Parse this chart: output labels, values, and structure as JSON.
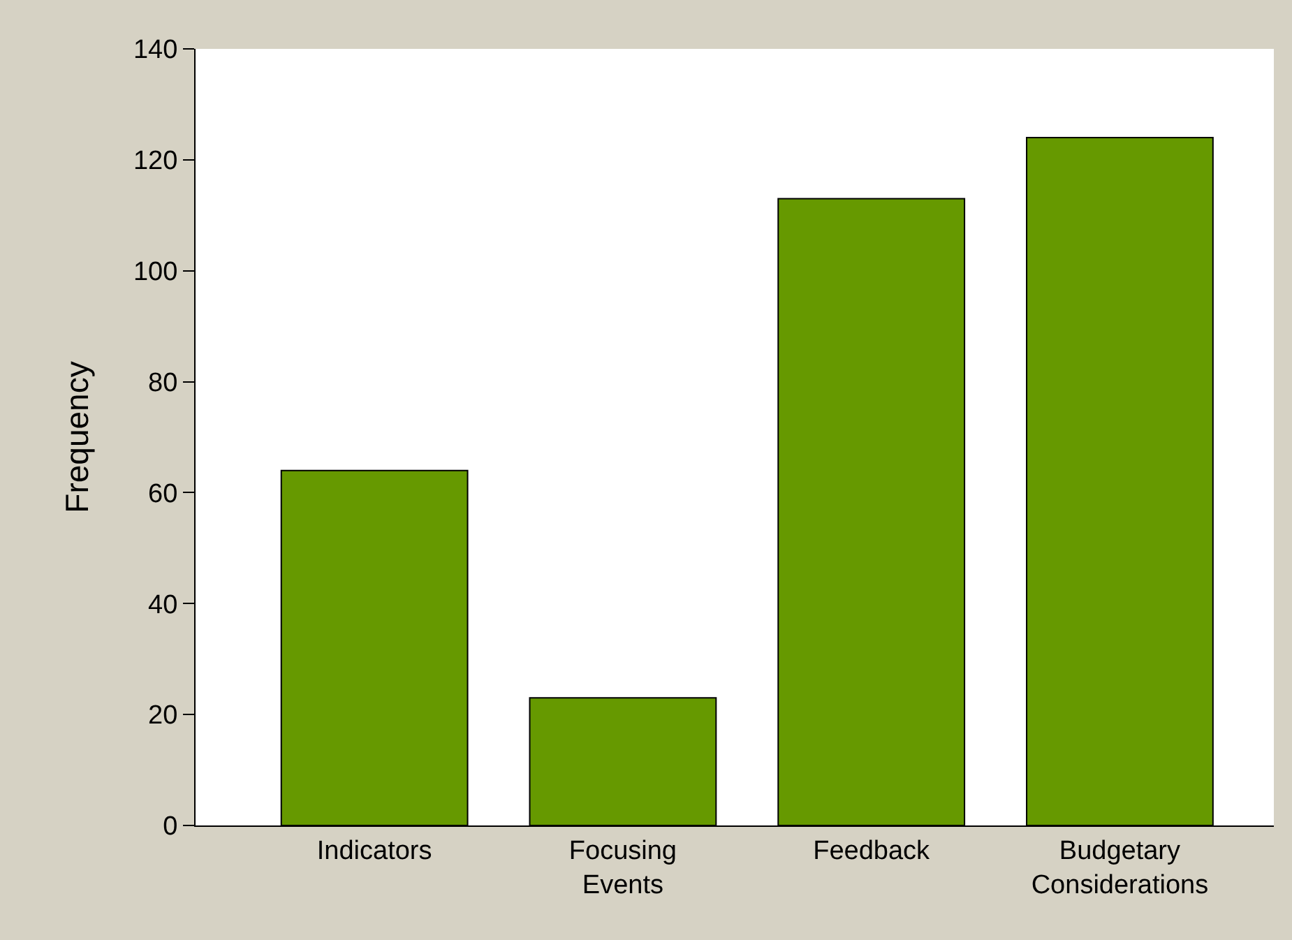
{
  "chart_data": {
    "type": "bar",
    "ylabel": "Frequency",
    "categories": [
      "Indicators",
      "Focusing Events",
      "Feedback",
      "Budgetary Considerations"
    ],
    "values": [
      64,
      23,
      113,
      124
    ],
    "color": "#669900",
    "ylim": [
      0,
      140
    ],
    "yticks": [
      0,
      20,
      40,
      60,
      80,
      100,
      120,
      140
    ],
    "grid": false
  }
}
